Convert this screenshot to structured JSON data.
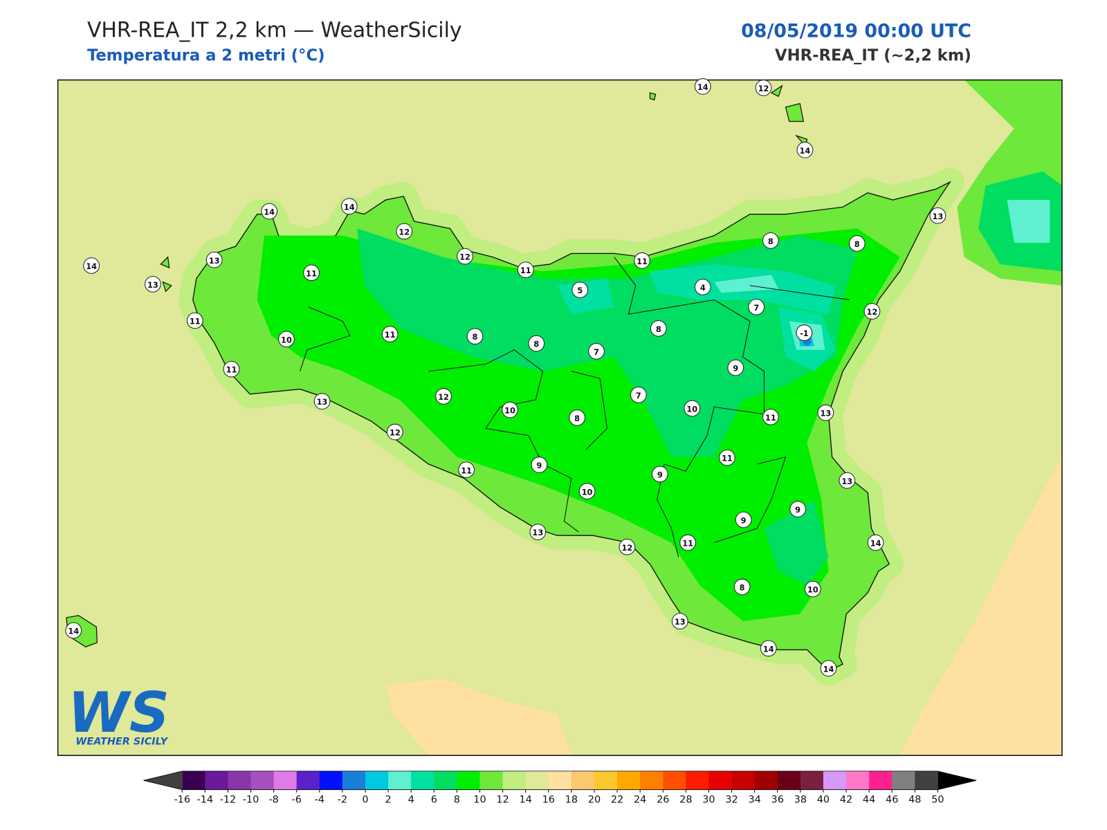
{
  "header": {
    "title": "VHR-REA_IT 2,2 km — WeatherSicily",
    "subtitle": "Temperatura a 2 metri (°C)",
    "datetime": "08/05/2019 00:00 UTC",
    "model": "VHR-REA_IT (~2,2 km)"
  },
  "stations": [
    14,
    14,
    12,
    12,
    11,
    11,
    8,
    8,
    13,
    14,
    12,
    14,
    14,
    13,
    13,
    11,
    11,
    10,
    11,
    11,
    8,
    8,
    5,
    4,
    7,
    -1,
    12,
    8,
    7,
    9,
    7,
    10,
    11,
    13,
    13,
    12,
    10,
    8,
    12,
    11,
    11,
    9,
    9,
    10,
    13,
    9,
    9,
    11,
    13,
    12,
    14,
    8,
    10,
    13,
    14,
    14,
    14
  ],
  "colorbar": {
    "ticks": [
      -16,
      -14,
      -12,
      -10,
      -8,
      -6,
      -4,
      -2,
      0,
      2,
      4,
      6,
      8,
      10,
      12,
      14,
      16,
      18,
      20,
      22,
      24,
      26,
      28,
      30,
      32,
      34,
      36,
      38,
      40,
      42,
      44,
      46,
      48,
      50
    ],
    "colors": [
      "#3b0052",
      "#6a1a9a",
      "#8a35a8",
      "#a64fbf",
      "#e07ae6",
      "#5a22c8",
      "#0010ff",
      "#1a7fd8",
      "#00c8e0",
      "#5ef0d0",
      "#00e0a0",
      "#00dd60",
      "#00ee00",
      "#6ee83a",
      "#c0ee80",
      "#e0e89a",
      "#fee0a0",
      "#fcc870",
      "#fcc830",
      "#ffa800",
      "#ff8000",
      "#ff5000",
      "#ff1a00",
      "#e60000",
      "#c80000",
      "#a00000",
      "#6a0018",
      "#7a2040",
      "#d898f8",
      "#ff78c8",
      "#ff2090",
      "#808080",
      "#404040"
    ],
    "under_color": "#404040",
    "over_color": "#000000"
  },
  "logo": {
    "mark": "WS",
    "name": "WEATHER SICILY"
  }
}
